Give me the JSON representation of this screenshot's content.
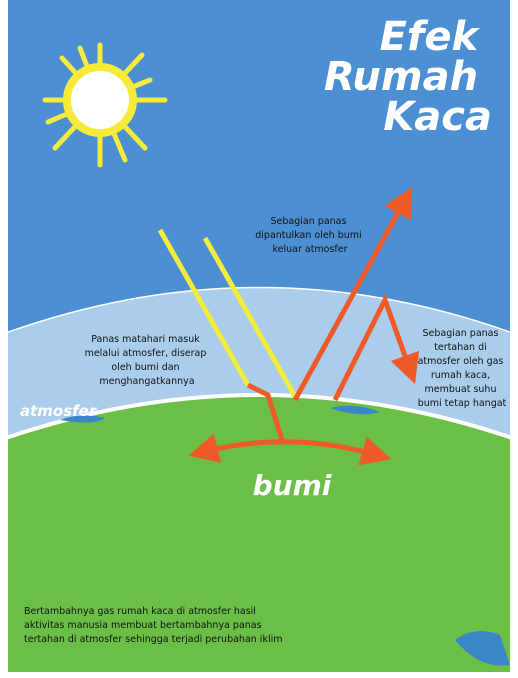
{
  "title": {
    "lines": [
      "Efek",
      "Rumah",
      "Kaca"
    ]
  },
  "labels": {
    "reflected": [
      "Sebagian panas",
      "dipantulkan oleh bumi",
      "keluar atmosfer"
    ],
    "absorbed": [
      "Panas matahari masuk",
      "melalui atmosfer, diserap",
      "oleh bumi dan",
      "menghangatkannya"
    ],
    "trapped": [
      "Sebagian panas",
      "tertahan di",
      "atmosfer oleh gas",
      "rumah kaca,",
      "membuat suhu",
      "bumi tetap hangat"
    ],
    "atmosphere": "atmosfer",
    "earth": "bumi"
  },
  "footer": [
    "Bertambahnya gas rumah kaca di atmosfer hasil",
    "aktivitas manusia membuat bertambahnya panas",
    "tertahan di atmosfer sehingga terjadi perubahan iklim"
  ]
}
